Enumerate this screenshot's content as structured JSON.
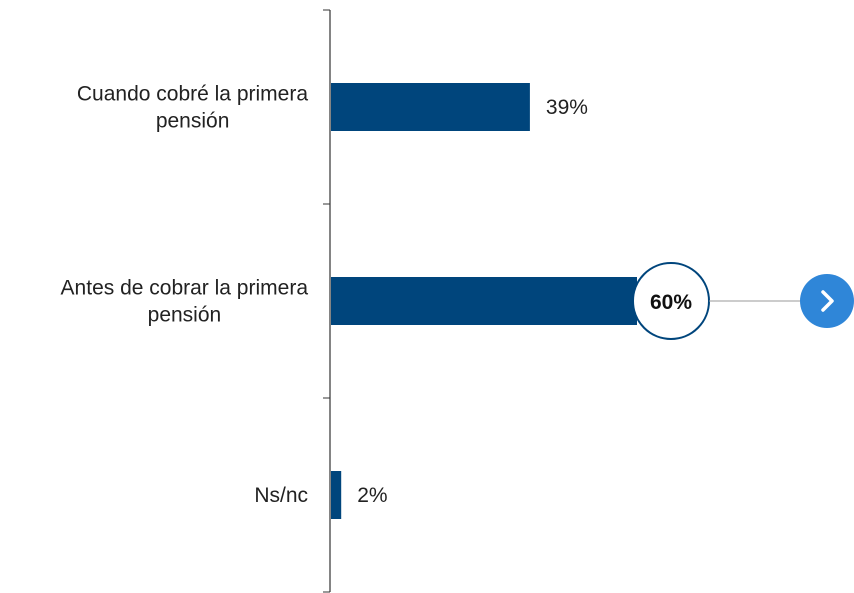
{
  "chart_data": {
    "type": "bar",
    "orientation": "horizontal",
    "categories": [
      [
        "Cuando cobré la primera",
        "pensión"
      ],
      [
        "Antes de cobrar la primera",
        "pensión"
      ],
      [
        "Ns/nc"
      ]
    ],
    "values": [
      39,
      60,
      2
    ],
    "value_labels": [
      "39%",
      "60%",
      "2%"
    ],
    "highlight_index": 1,
    "xlim": [
      0,
      100
    ],
    "grid": false,
    "colors": {
      "bar": "#00457c",
      "axis": "#333333",
      "highlight_ring": "#00457c",
      "connector": "#9a9a9a",
      "button": "#2f86d8"
    }
  },
  "controls": {
    "next_icon": "chevron-right-icon"
  }
}
